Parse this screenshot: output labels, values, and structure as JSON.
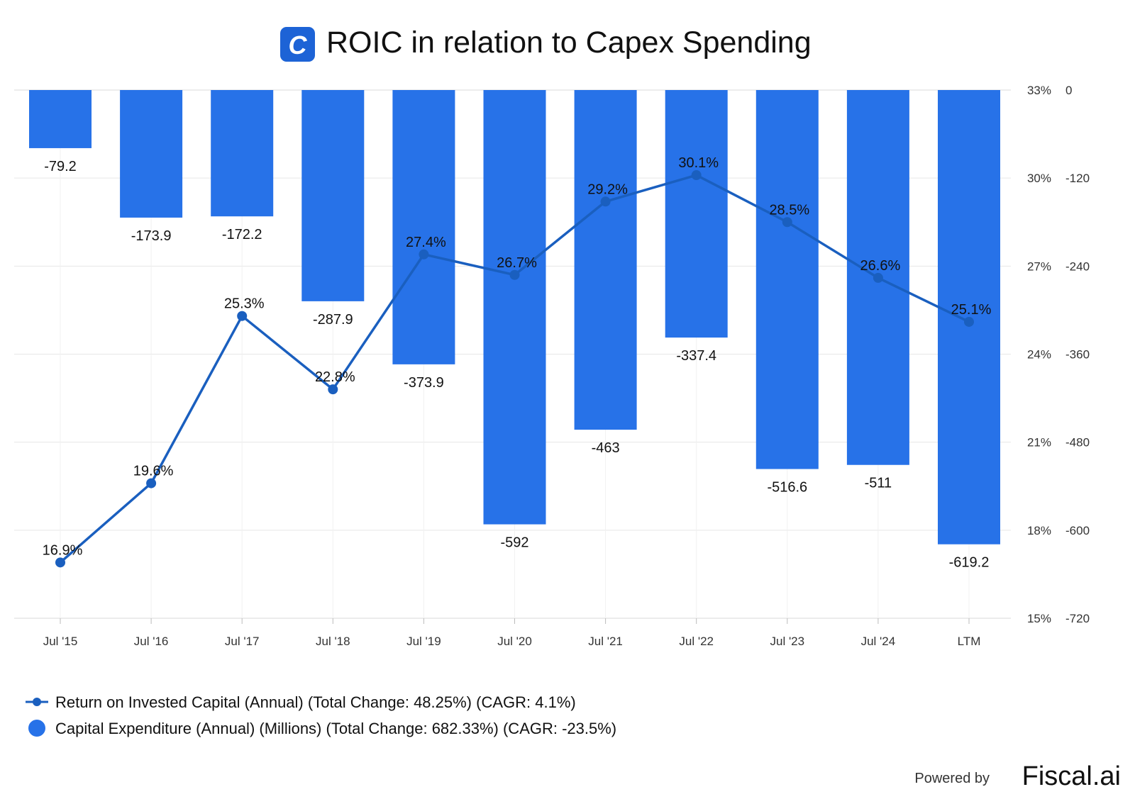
{
  "title": "ROIC in relation to Capex Spending",
  "logo_letter": "C",
  "colors": {
    "bar": "#2772e8",
    "line": "#1a5fbf",
    "grid": "#e6e6e6",
    "logo_bg": "#1d63d6"
  },
  "legend": [
    {
      "label": "Return on Invested Capital (Annual) (Total Change: 48.25%) (CAGR: 4.1%)",
      "icon": "line-marker-icon"
    },
    {
      "label": "Capital Expenditure (Annual) (Millions) (Total Change: 682.33%) (CAGR: -23.5%)",
      "icon": "circle-icon"
    }
  ],
  "footer": {
    "powered_by": "Powered by",
    "brand": "Fiscal.ai"
  },
  "chart_data": {
    "type": "bar+line",
    "title": "ROIC in relation to Capex Spending",
    "categories": [
      "Jul '15",
      "Jul '16",
      "Jul '17",
      "Jul '18",
      "Jul '19",
      "Jul '20",
      "Jul '21",
      "Jul '22",
      "Jul '23",
      "Jul '24",
      "LTM"
    ],
    "series": [
      {
        "name": "Return on Invested Capital (Annual)",
        "type": "line",
        "axis": "left",
        "values": [
          16.9,
          19.6,
          25.3,
          22.8,
          27.4,
          26.7,
          29.2,
          30.1,
          28.5,
          26.6,
          25.1
        ],
        "labels": [
          "16.9%",
          "19.6%",
          "25.3%",
          "22.8%",
          "27.4%",
          "26.7%",
          "29.2%",
          "30.1%",
          "28.5%",
          "26.6%",
          "25.1%"
        ]
      },
      {
        "name": "Capital Expenditure (Annual) (Millions)",
        "type": "bar",
        "axis": "right",
        "values": [
          -79.2,
          -173.9,
          -172.2,
          -287.9,
          -373.9,
          -592,
          -463,
          -337.4,
          -516.6,
          -511,
          -619.2
        ],
        "labels": [
          "-79.2",
          "-173.9",
          "-172.2",
          "-287.9",
          "-373.9",
          "-592",
          "-463",
          "-337.4",
          "-516.6",
          "-511",
          "-619.2"
        ]
      }
    ],
    "y_left": {
      "range": [
        15,
        33
      ],
      "ticks": [
        "33%",
        "30%",
        "27%",
        "24%",
        "21%",
        "18%",
        "15%"
      ],
      "tick_values": [
        33,
        30,
        27,
        24,
        21,
        18,
        15
      ]
    },
    "y_right": {
      "range": [
        -720,
        0
      ],
      "ticks": [
        "0",
        "-120",
        "-240",
        "-360",
        "-480",
        "-600",
        "-720"
      ],
      "tick_values": [
        0,
        -120,
        -240,
        -360,
        -480,
        -600,
        -720
      ]
    },
    "grid": true,
    "legend_position": "bottom-left"
  }
}
